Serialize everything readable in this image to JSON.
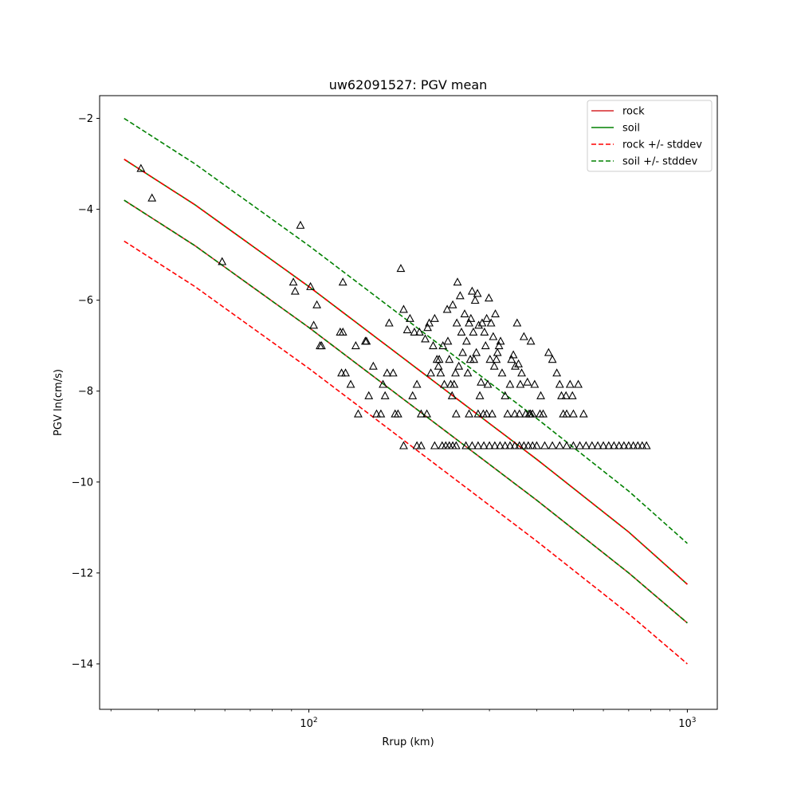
{
  "chart_data": {
    "type": "scatter",
    "title": "uw62091527: PGV mean",
    "xlabel": "Rrup (km)",
    "ylabel": "PGV ln(cm/s)",
    "xscale": "log",
    "xlim": [
      28,
      1200
    ],
    "ylim": [
      -15.0,
      -1.5
    ],
    "grid": false,
    "legend_position": "top-right",
    "x_ticks": [
      {
        "value": 100,
        "base": "10",
        "exp": "2"
      },
      {
        "value": 1000,
        "base": "10",
        "exp": "3"
      }
    ],
    "y_ticks": [
      {
        "value": -14,
        "label": "−14"
      },
      {
        "value": -12,
        "label": "−12"
      },
      {
        "value": -10,
        "label": "−10"
      },
      {
        "value": -8,
        "label": "−8"
      },
      {
        "value": -6,
        "label": "−6"
      },
      {
        "value": -4,
        "label": "−4"
      },
      {
        "value": -2,
        "label": "−2"
      }
    ],
    "legend": [
      {
        "label": "rock",
        "color": "#d62728",
        "dash": false
      },
      {
        "label": "soil",
        "color": "#008000",
        "dash": false
      },
      {
        "label": "rock +/- stddev",
        "color": "#ff0000",
        "dash": true
      },
      {
        "label": "soil +/- stddev",
        "color": "#008000",
        "dash": true
      }
    ],
    "curves": [
      {
        "name": "rock",
        "role": "rock mean",
        "color": "#d62728",
        "dash": false,
        "x": [
          32.5,
          50,
          100,
          200,
          400,
          700,
          1000
        ],
        "y": [
          -3.8,
          -4.8,
          -6.6,
          -8.5,
          -10.4,
          -12.0,
          -13.1
        ]
      },
      {
        "name": "soil",
        "role": "soil mean",
        "color": "#008000",
        "dash": false,
        "x": [
          32.5,
          50,
          100,
          200,
          400,
          700,
          1000
        ],
        "y": [
          -2.9,
          -3.9,
          -5.7,
          -7.6,
          -9.5,
          -11.1,
          -12.25
        ]
      },
      {
        "name": "rock +/- stddev",
        "role": "rock minus stddev",
        "color": "#ff0000",
        "dash": true,
        "x": [
          32.5,
          50,
          100,
          200,
          400,
          700,
          1000
        ],
        "y": [
          -4.7,
          -5.7,
          -7.5,
          -9.4,
          -11.3,
          -12.9,
          -14.0
        ]
      },
      {
        "name": "rock +/- stddev",
        "role": "rock plus stddev",
        "color": "#ff0000",
        "dash": true,
        "x": [
          32.5,
          50,
          100,
          200,
          400,
          700,
          1000
        ],
        "y": [
          -2.9,
          -3.9,
          -5.7,
          -7.6,
          -9.5,
          -11.1,
          -12.25
        ]
      },
      {
        "name": "soil +/- stddev",
        "role": "soil minus stddev",
        "color": "#008000",
        "dash": true,
        "x": [
          32.5,
          50,
          100,
          200,
          400,
          700,
          1000
        ],
        "y": [
          -3.8,
          -4.8,
          -6.6,
          -8.5,
          -10.4,
          -12.0,
          -13.1
        ]
      },
      {
        "name": "soil +/- stddev",
        "role": "soil plus stddev",
        "color": "#008000",
        "dash": true,
        "x": [
          32.5,
          50,
          100,
          200,
          400,
          700,
          1000
        ],
        "y": [
          -2.0,
          -3.0,
          -4.8,
          -6.7,
          -8.6,
          -10.2,
          -11.35
        ]
      }
    ],
    "marker": {
      "shape": "triangle",
      "fill": "none",
      "stroke": "#000000"
    },
    "points": [
      [
        36,
        -3.1
      ],
      [
        38.5,
        -3.75
      ],
      [
        59,
        -5.15
      ],
      [
        91,
        -5.6
      ],
      [
        92,
        -5.8
      ],
      [
        95,
        -4.35
      ],
      [
        101,
        -5.7
      ],
      [
        103,
        -6.55
      ],
      [
        105,
        -6.1
      ],
      [
        107,
        -7.0
      ],
      [
        108,
        -7.0
      ],
      [
        121,
        -6.7
      ],
      [
        122,
        -7.6
      ],
      [
        123,
        -5.6
      ],
      [
        123,
        -6.7
      ],
      [
        125,
        -7.6
      ],
      [
        129,
        -7.85
      ],
      [
        133,
        -7.0
      ],
      [
        135,
        -8.5
      ],
      [
        141,
        -6.9
      ],
      [
        142,
        -6.9
      ],
      [
        144,
        -8.1
      ],
      [
        148,
        -7.45
      ],
      [
        151,
        -8.5
      ],
      [
        155,
        -8.5
      ],
      [
        157,
        -7.85
      ],
      [
        159,
        -8.1
      ],
      [
        161,
        -7.6
      ],
      [
        163,
        -6.5
      ],
      [
        167,
        -7.6
      ],
      [
        169,
        -8.5
      ],
      [
        172,
        -8.5
      ],
      [
        175,
        -5.3
      ],
      [
        178,
        -6.2
      ],
      [
        182,
        -6.65
      ],
      [
        185,
        -6.4
      ],
      [
        188,
        -8.1
      ],
      [
        190,
        -6.7
      ],
      [
        193,
        -7.85
      ],
      [
        196,
        -6.7
      ],
      [
        198,
        -8.5
      ],
      [
        203,
        -6.85
      ],
      [
        206,
        -6.6
      ],
      [
        208,
        -6.5
      ],
      [
        210,
        -7.6
      ],
      [
        213,
        -7.0
      ],
      [
        215,
        -6.4
      ],
      [
        218,
        -7.3
      ],
      [
        220,
        -7.45
      ],
      [
        221,
        -7.3
      ],
      [
        223,
        -7.6
      ],
      [
        226,
        -7.0
      ],
      [
        228,
        -7.85
      ],
      [
        232,
        -6.2
      ],
      [
        233,
        -6.9
      ],
      [
        235,
        -7.3
      ],
      [
        237,
        -7.85
      ],
      [
        239,
        -8.1
      ],
      [
        240,
        -6.1
      ],
      [
        242,
        -7.85
      ],
      [
        244,
        -7.6
      ],
      [
        246,
        -6.5
      ],
      [
        247,
        -5.6
      ],
      [
        249,
        -7.45
      ],
      [
        251,
        -5.9
      ],
      [
        253,
        -6.7
      ],
      [
        255,
        -7.15
      ],
      [
        258,
        -6.3
      ],
      [
        261,
        -6.9
      ],
      [
        263,
        -7.6
      ],
      [
        265,
        -6.5
      ],
      [
        267,
        -7.3
      ],
      [
        268,
        -6.4
      ],
      [
        270,
        -5.8
      ],
      [
        272,
        -6.7
      ],
      [
        273,
        -7.3
      ],
      [
        275,
        -6.0
      ],
      [
        277,
        -7.15
      ],
      [
        279,
        -5.85
      ],
      [
        281,
        -6.55
      ],
      [
        283,
        -8.1
      ],
      [
        285,
        -7.8
      ],
      [
        287,
        -6.5
      ],
      [
        289,
        -8.5
      ],
      [
        291,
        -6.7
      ],
      [
        293,
        -7.0
      ],
      [
        295,
        -6.4
      ],
      [
        297,
        -7.85
      ],
      [
        299,
        -5.95
      ],
      [
        301,
        -7.3
      ],
      [
        303,
        -6.5
      ],
      [
        305,
        -8.5
      ],
      [
        307,
        -6.8
      ],
      [
        309,
        -7.45
      ],
      [
        311,
        -6.3
      ],
      [
        313,
        -7.3
      ],
      [
        315,
        -7.15
      ],
      [
        318,
        -7.0
      ],
      [
        321,
        -6.9
      ],
      [
        324,
        -7.6
      ],
      [
        330,
        -8.1
      ],
      [
        335,
        -8.5
      ],
      [
        340,
        -7.85
      ],
      [
        343,
        -7.3
      ],
      [
        347,
        -7.2
      ],
      [
        351,
        -7.45
      ],
      [
        355,
        -6.5
      ],
      [
        358,
        -7.4
      ],
      [
        362,
        -7.85
      ],
      [
        365,
        -7.6
      ],
      [
        370,
        -6.8
      ],
      [
        374,
        -8.5
      ],
      [
        378,
        -7.8
      ],
      [
        382,
        -8.5
      ],
      [
        386,
        -6.9
      ],
      [
        390,
        -8.5
      ],
      [
        395,
        -7.85
      ],
      [
        408,
        -8.5
      ],
      [
        410,
        -8.1
      ],
      [
        416,
        -8.5
      ],
      [
        430,
        -7.15
      ],
      [
        440,
        -7.3
      ],
      [
        452,
        -7.6
      ],
      [
        460,
        -7.85
      ],
      [
        465,
        -8.1
      ],
      [
        470,
        -8.5
      ],
      [
        478,
        -8.1
      ],
      [
        490,
        -7.85
      ],
      [
        497,
        -8.1
      ],
      [
        515,
        -7.85
      ],
      [
        532,
        -8.5
      ],
      [
        178,
        -9.2
      ],
      [
        193,
        -9.2
      ],
      [
        198,
        -9.2
      ],
      [
        215,
        -9.2
      ],
      [
        225,
        -9.2
      ],
      [
        230,
        -9.2
      ],
      [
        235,
        -9.2
      ],
      [
        240,
        -9.2
      ],
      [
        245,
        -9.2
      ],
      [
        260,
        -9.2
      ],
      [
        270,
        -9.2
      ],
      [
        280,
        -9.2
      ],
      [
        290,
        -9.2
      ],
      [
        300,
        -9.2
      ],
      [
        310,
        -9.2
      ],
      [
        320,
        -9.2
      ],
      [
        330,
        -9.2
      ],
      [
        340,
        -9.2
      ],
      [
        350,
        -9.2
      ],
      [
        360,
        -9.2
      ],
      [
        370,
        -9.2
      ],
      [
        380,
        -9.2
      ],
      [
        390,
        -9.2
      ],
      [
        400,
        -9.2
      ],
      [
        420,
        -9.2
      ],
      [
        440,
        -9.2
      ],
      [
        460,
        -9.2
      ],
      [
        480,
        -9.2
      ],
      [
        500,
        -9.2
      ],
      [
        520,
        -9.2
      ],
      [
        540,
        -9.2
      ],
      [
        560,
        -9.2
      ],
      [
        580,
        -9.2
      ],
      [
        600,
        -9.2
      ],
      [
        620,
        -9.2
      ],
      [
        640,
        -9.2
      ],
      [
        660,
        -9.2
      ],
      [
        680,
        -9.2
      ],
      [
        700,
        -9.2
      ],
      [
        720,
        -9.2
      ],
      [
        740,
        -9.2
      ],
      [
        760,
        -9.2
      ],
      [
        780,
        -9.2
      ],
      [
        205,
        -8.5
      ],
      [
        245,
        -8.5
      ],
      [
        265,
        -8.5
      ],
      [
        280,
        -8.5
      ],
      [
        295,
        -8.5
      ],
      [
        350,
        -8.5
      ],
      [
        360,
        -8.5
      ],
      [
        385,
        -8.5
      ],
      [
        480,
        -8.5
      ],
      [
        500,
        -8.5
      ]
    ]
  }
}
